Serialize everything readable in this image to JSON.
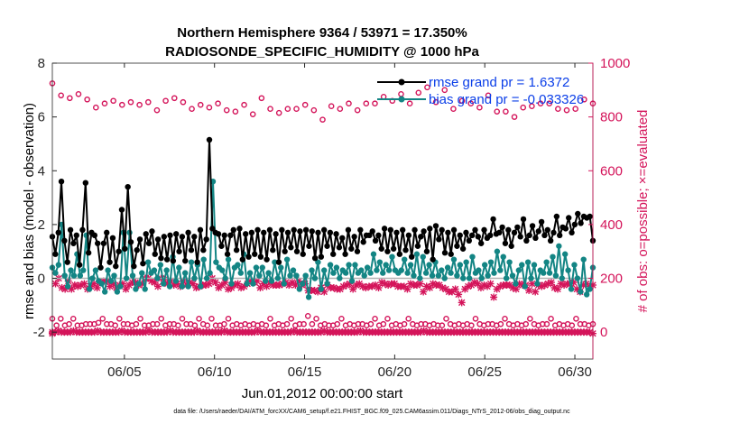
{
  "chart_data": {
    "type": "line",
    "title": "Northern Hemisphere 9364 / 53971 = 17.350%",
    "subtitle": "RADIOSONDE_SPECIFIC_HUMIDITY @ 1000 hPa",
    "xlabel": "Jun.01,2012 00:00:00 start",
    "ylabel_left": "rmse and bias (model - observation)",
    "ylabel_right": "# of obs: o=possible; ×=evaluated",
    "x_ticks": [
      "06/05",
      "06/10",
      "06/15",
      "06/20",
      "06/25",
      "06/30"
    ],
    "x_tick_days": [
      5,
      10,
      15,
      20,
      25,
      30
    ],
    "xlim": [
      1,
      31
    ],
    "ylim_left": [
      -3,
      8
    ],
    "y_ticks_left": [
      "-2",
      "0",
      "2",
      "4",
      "6",
      "8"
    ],
    "ylim_right": [
      -100,
      1000
    ],
    "y_ticks_right": [
      "0",
      "200",
      "400",
      "600",
      "800",
      "1000"
    ],
    "colors": {
      "rmse": "#000000",
      "bias": "#138584",
      "obs": "#d4145a",
      "legend_text": "#0a3ee8",
      "zero_line": "#b3b3b3"
    },
    "legend": {
      "rmse_label": "rmse grand pr = 1.6372",
      "bias_label": "bias grand pr = -0.033326"
    },
    "series": [
      {
        "name": "rmse",
        "values": [
          1.55,
          0.9,
          1.7,
          3.6,
          1.4,
          0.6,
          1.8,
          1.3,
          1.6,
          0.5,
          1.8,
          3.55,
          0.95,
          1.7,
          1.6,
          1.3,
          0.4,
          1.3,
          1.7,
          0.6,
          1.5,
          0.45,
          1.0,
          2.55,
          1.1,
          3.4,
          1.35,
          0.45,
          1.05,
          1.45,
          0.55,
          1.65,
          1.3,
          1.75,
          0.9,
          1.45,
          0.75,
          1.55,
          0.7,
          1.6,
          0.65,
          1.65,
          1.0,
          1.55,
          0.65,
          1.7,
          1.05,
          1.55,
          0.6,
          1.8,
          1.05,
          1.45,
          5.15,
          1.85,
          1.7,
          1.65,
          1.2,
          1.6,
          0.9,
          1.6,
          1.8,
          1.05,
          1.85,
          0.7,
          1.65,
          0.8,
          1.7,
          0.9,
          1.8,
          0.8,
          1.7,
          0.7,
          1.8,
          1.05,
          1.65,
          0.6,
          1.8,
          1.0,
          1.7,
          1.15,
          1.8,
          1.0,
          1.75,
          0.9,
          1.8,
          1.2,
          1.75,
          0.75,
          1.7,
          0.8,
          1.8,
          1.2,
          1.7,
          0.9,
          1.65,
          1.15,
          1.5,
          0.9,
          1.8,
          1.1,
          1.55,
          1.0,
          1.8,
          1.35,
          1.6,
          1.6,
          1.75,
          1.4,
          1.6,
          1.1,
          1.85,
          1.0,
          1.8,
          1.1,
          1.7,
          0.9,
          1.8,
          1.05,
          1.6,
          0.8,
          1.8,
          1.2,
          1.55,
          1.75,
          1.0,
          1.85,
          0.7,
          1.95,
          1.45,
          1.8,
          0.95,
          1.7,
          0.9,
          1.8,
          1.2,
          1.6,
          1.1,
          1.7,
          1.4,
          1.6,
          1.8,
          1.55,
          1.3,
          1.8,
          1.5,
          1.6,
          2.2,
          1.65,
          1.7,
          1.9,
          1.3,
          1.8,
          1.2,
          1.7,
          1.9,
          1.55,
          2.2,
          1.4,
          1.6,
          1.95,
          1.5,
          1.75,
          2.1,
          1.6,
          1.8,
          1.4,
          1.7,
          2.3,
          1.6,
          1.9,
          1.85,
          2.25,
          1.7,
          2.0,
          2.4,
          2.05,
          2.3,
          2.25,
          2.3,
          1.4
        ]
      },
      {
        "name": "bias",
        "values": [
          0.4,
          0.2,
          0.5,
          2.0,
          0.1,
          -0.3,
          0.3,
          0.1,
          0.9,
          0.1,
          0.3,
          1.6,
          -0.4,
          0.0,
          0.3,
          -0.1,
          -0.2,
          -0.5,
          0.3,
          -0.1,
          0.1,
          -0.5,
          -0.3,
          1.7,
          0.0,
          1.7,
          0.1,
          -0.4,
          -0.2,
          0.2,
          -0.4,
          0.6,
          0.2,
          0.3,
          0.0,
          0.5,
          -0.2,
          0.3,
          -0.3,
          0.8,
          -0.1,
          0.4,
          -0.3,
          0.2,
          -0.3,
          0.6,
          0.0,
          0.5,
          -0.3,
          0.7,
          0.0,
          0.2,
          3.6,
          0.6,
          0.4,
          0.3,
          0.0,
          0.7,
          -0.2,
          0.4,
          0.5,
          0.2,
          0.9,
          -0.2,
          0.2,
          -0.2,
          0.4,
          0.1,
          0.4,
          -0.1,
          0.2,
          -0.1,
          0.6,
          0.0,
          0.4,
          -0.2,
          0.7,
          0.1,
          0.3,
          0.1,
          -0.4,
          -0.2,
          0.1,
          -0.7,
          0.3,
          0.0,
          0.6,
          -0.4,
          0.3,
          -0.2,
          0.5,
          0.2,
          0.4,
          0.0,
          0.3,
          0.2,
          0.5,
          -0.1,
          0.5,
          0.2,
          0.3,
          0.1,
          0.4,
          0.2,
          0.9,
          0.3,
          0.6,
          0.2,
          0.5,
          0.3,
          0.8,
          0.3,
          0.2,
          0.3,
          0.7,
          0.2,
          0.5,
          0.1,
          0.9,
          0.0,
          0.8,
          0.2,
          0.5,
          0.1,
          0.6,
          0.1,
          0.3,
          0.0,
          0.4,
          0.2,
          0.7,
          0.1,
          0.5,
          0.0,
          0.6,
          0.0,
          0.8,
          0.2,
          0.3,
          0.0,
          0.5,
          0.1,
          0.6,
          0.2,
          1.0,
          0.3,
          0.8,
          0.0,
          0.6,
          0.1,
          -0.2,
          0.3,
          0.5,
          -0.3,
          0.6,
          0.0,
          0.5,
          -0.2,
          0.3,
          0.2,
          0.6,
          0.2,
          0.8,
          0.1,
          1.2,
          0.0,
          0.9,
          0.3,
          -0.4,
          0.5,
          0.0,
          -0.5,
          0.7,
          -0.6,
          -0.4,
          0.4
        ]
      },
      {
        "name": "obs possible",
        "values": [
          925,
          880,
          870,
          885,
          865,
          835,
          850,
          860,
          845,
          855,
          845,
          855,
          825,
          860,
          870,
          855,
          830,
          845,
          835,
          850,
          825,
          820,
          845,
          810,
          870,
          830,
          815,
          830,
          830,
          845,
          825,
          790,
          840,
          830,
          850,
          825,
          850,
          850,
          875,
          860,
          885,
          850,
          890,
          910,
          855,
          900,
          830,
          860,
          850,
          835,
          880,
          820,
          820,
          800,
          835,
          840,
          850,
          850,
          830,
          825,
          830,
          865,
          850
        ]
      },
      {
        "name": "obs evaluated",
        "values": [
          -5,
          180,
          200,
          165,
          160,
          190,
          160,
          175,
          170,
          175,
          180,
          160,
          170,
          180,
          165,
          185,
          190,
          190,
          170,
          180,
          165,
          175,
          180,
          160,
          175,
          185,
          185,
          175,
          180,
          200,
          200,
          190,
          185,
          170,
          200,
          195,
          180,
          190,
          175,
          180,
          170,
          190,
          175,
          185,
          180,
          165,
          170,
          175,
          175,
          180,
          200,
          185,
          165,
          175,
          185,
          160,
          165,
          175,
          180,
          165,
          170,
          180,
          190,
          185,
          190,
          165,
          180,
          170,
          185,
          175,
          175,
          175,
          180,
          185,
          175,
          185,
          175,
          190,
          175,
          180,
          155,
          155,
          155,
          150,
          165,
          150,
          175,
          165,
          165,
          160,
          160,
          170,
          175,
          180,
          160,
          175,
          180,
          170,
          165,
          170,
          170,
          175,
          165,
          185,
          180,
          175,
          180,
          180,
          170,
          170,
          170,
          160,
          180,
          175,
          175,
          180,
          150,
          170,
          165,
          180,
          175,
          175,
          165,
          160,
          150,
          150,
          160,
          140,
          110,
          160,
          170,
          175,
          185,
          180,
          165,
          175,
          170,
          180,
          130,
          160,
          170,
          175,
          175,
          175,
          165,
          160,
          180,
          175,
          175,
          155,
          180,
          150,
          175,
          170,
          175,
          180,
          185,
          165,
          160,
          180,
          175,
          180,
          180,
          185,
          160,
          150,
          175,
          180,
          170,
          175
        ]
      },
      {
        "name": "obs possible low",
        "values": [
          50,
          25,
          50,
          25,
          30,
          50,
          25,
          25,
          30,
          30,
          30,
          35,
          50,
          30,
          30,
          25,
          50,
          30,
          30,
          25,
          30,
          50,
          25,
          25,
          30,
          30,
          50,
          25,
          30,
          30,
          25,
          50,
          30,
          30,
          25,
          50,
          30,
          25,
          50,
          25,
          25,
          30,
          50,
          25,
          30,
          25,
          30,
          25,
          30,
          25,
          30,
          25,
          50,
          25,
          30,
          25,
          30,
          50,
          25,
          30,
          30,
          60,
          30,
          50,
          25,
          30,
          25,
          25,
          30,
          50,
          25,
          30,
          25,
          30,
          30,
          25,
          30,
          50,
          25,
          30,
          50,
          25,
          30,
          25,
          30,
          50,
          30,
          25,
          30,
          30,
          25,
          30,
          25,
          25,
          50,
          30,
          25,
          30,
          25,
          30,
          25,
          50,
          30,
          25,
          30,
          30,
          25,
          30,
          50,
          30,
          25,
          30,
          25,
          30,
          50,
          30,
          25,
          30,
          30,
          50,
          25,
          30,
          25,
          30,
          25,
          50,
          30,
          30,
          25,
          30
        ]
      },
      {
        "name": "obs evaluated low",
        "values": [
          0,
          0,
          5,
          0,
          0,
          0,
          0,
          5,
          0,
          0,
          0,
          0,
          0,
          0,
          0,
          5,
          0,
          0,
          0,
          0,
          0,
          0,
          0,
          5,
          0,
          0,
          0,
          0,
          0,
          0,
          0,
          0,
          5,
          0,
          0,
          0,
          0,
          0,
          0,
          5,
          0,
          0,
          0,
          0,
          0,
          0,
          0,
          0,
          5,
          0,
          0,
          0,
          0,
          0,
          0,
          0,
          0,
          5,
          0,
          0,
          0,
          0,
          0,
          0,
          0,
          0,
          0,
          0,
          5,
          0,
          0,
          0,
          0,
          0,
          0,
          0,
          0,
          0,
          0,
          0,
          5,
          0,
          0,
          0,
          0,
          0,
          0,
          0,
          0,
          0,
          5,
          0,
          0,
          0,
          0,
          0,
          0,
          0,
          0,
          0,
          0,
          0,
          5,
          0,
          0,
          0,
          0,
          0,
          0,
          0,
          0,
          0,
          0,
          0,
          0,
          0,
          0,
          0,
          0,
          0,
          0,
          0,
          0,
          5,
          0,
          0,
          0,
          0,
          0,
          0,
          0,
          0,
          0,
          0,
          0,
          0,
          0,
          0,
          0,
          0,
          0,
          0,
          0,
          0,
          0,
          0,
          0,
          0,
          0,
          0,
          0,
          0,
          0,
          0,
          0,
          0,
          0,
          0,
          0,
          0,
          0,
          0,
          0,
          0,
          0,
          0,
          0,
          0,
          0,
          0,
          0,
          0,
          0,
          0,
          0,
          0,
          0,
          0,
          0,
          -5
        ]
      }
    ],
    "footer": "data file: /Users/raeder/DAI/ATM_forcXX/CAM6_setup/f.e21.FHIST_BGC.f09_025.CAM6assim.011/Diags_NTrS_2012-06/obs_diag_output.nc"
  }
}
